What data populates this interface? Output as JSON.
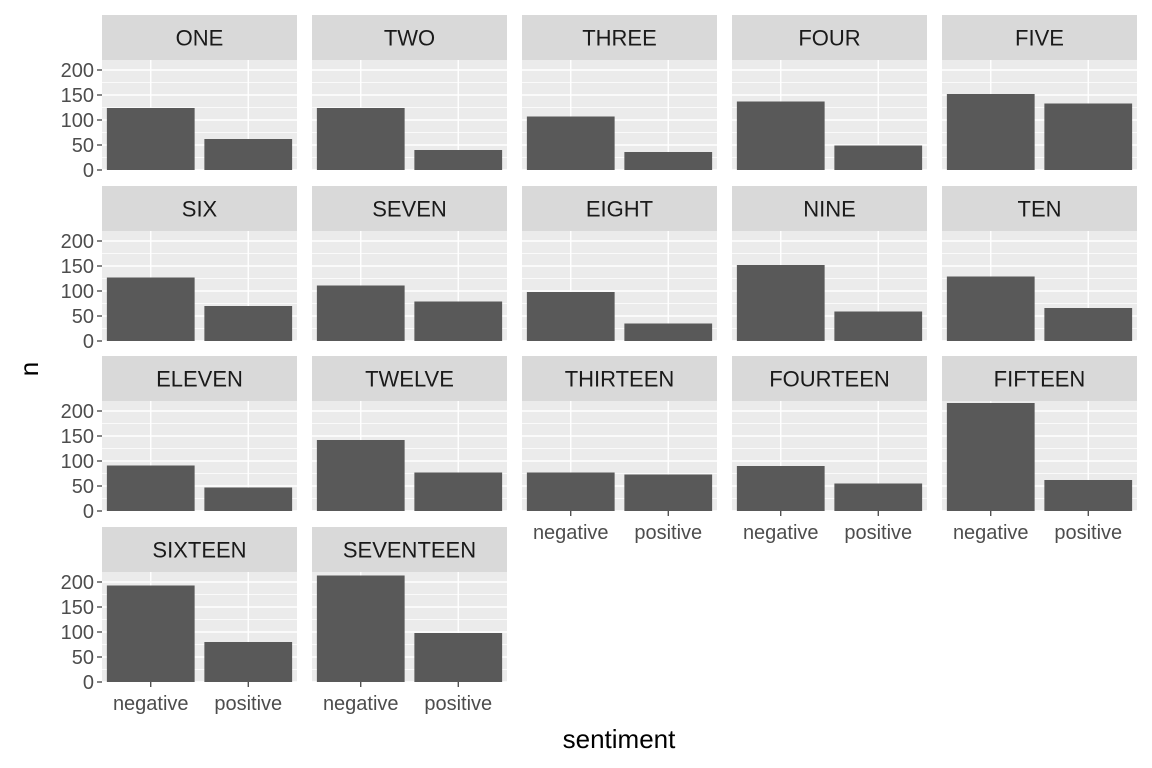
{
  "chart_data": {
    "type": "bar",
    "facet_layout": "wrap",
    "facet_columns": 5,
    "xlabel": "sentiment",
    "ylabel": "n",
    "categories": [
      "negative",
      "positive"
    ],
    "ylim": [
      0,
      220
    ],
    "yticks": [
      0,
      50,
      100,
      150,
      200
    ],
    "grid": true,
    "colors": {
      "bar": "#595959",
      "panel_background": "#ebebeb",
      "grid": "#ffffff",
      "strip_background": "#d9d9d9"
    },
    "panels": [
      {
        "title": "ONE",
        "values": [
          124,
          62
        ]
      },
      {
        "title": "TWO",
        "values": [
          124,
          40
        ]
      },
      {
        "title": "THREE",
        "values": [
          107,
          36
        ]
      },
      {
        "title": "FOUR",
        "values": [
          137,
          49
        ]
      },
      {
        "title": "FIVE",
        "values": [
          152,
          133
        ]
      },
      {
        "title": "SIX",
        "values": [
          127,
          70
        ]
      },
      {
        "title": "SEVEN",
        "values": [
          111,
          79
        ]
      },
      {
        "title": "EIGHT",
        "values": [
          98,
          35
        ]
      },
      {
        "title": "NINE",
        "values": [
          152,
          59
        ]
      },
      {
        "title": "TEN",
        "values": [
          129,
          66
        ]
      },
      {
        "title": "ELEVEN",
        "values": [
          91,
          47
        ]
      },
      {
        "title": "TWELVE",
        "values": [
          142,
          77
        ]
      },
      {
        "title": "THIRTEEN",
        "values": [
          77,
          73
        ]
      },
      {
        "title": "FOURTEEN",
        "values": [
          90,
          55
        ]
      },
      {
        "title": "FIFTEEN",
        "values": [
          216,
          62
        ]
      },
      {
        "title": "SIXTEEN",
        "values": [
          193,
          80
        ]
      },
      {
        "title": "SEVENTEEN",
        "values": [
          213,
          98
        ]
      }
    ]
  }
}
